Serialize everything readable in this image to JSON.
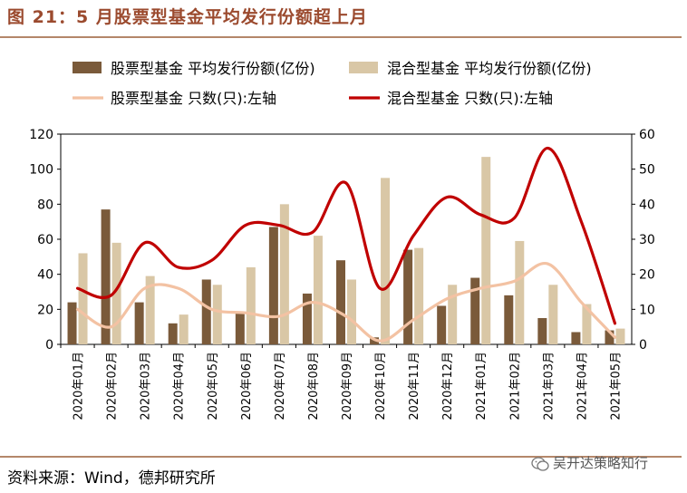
{
  "title": "图 21：5 月股票型基金平均发行份额超上月",
  "source": "资料来源：Wind，德邦研究所",
  "watermark": "吴开达策略知行",
  "colors": {
    "stock_bar": "#7a5a3a",
    "mixed_bar": "#d9c7a6",
    "stock_line": "#f3c2a3",
    "mixed_line": "#c00000",
    "accent": "#9b4a2e"
  },
  "chart_data": {
    "type": "bar",
    "categories": [
      "2020年01月",
      "2020年02月",
      "2020年03月",
      "2020年04月",
      "2020年05月",
      "2020年06月",
      "2020年07月",
      "2020年08月",
      "2020年09月",
      "2020年10月",
      "2020年11月",
      "2020年12月",
      "2021年01月",
      "2021年02月",
      "2021年03月",
      "2021年04月",
      "2021年05月"
    ],
    "series": [
      {
        "name": "股票型基金 平均发行份额(亿份)",
        "type": "bar",
        "axis": "left",
        "values": [
          24,
          77,
          24,
          12,
          37,
          18,
          67,
          29,
          48,
          4,
          54,
          22,
          38,
          28,
          15,
          7,
          8
        ]
      },
      {
        "name": "混合型基金 平均发行份额(亿份)",
        "type": "bar",
        "axis": "left",
        "values": [
          52,
          58,
          39,
          17,
          34,
          44,
          80,
          62,
          37,
          95,
          55,
          34,
          107,
          59,
          34,
          23,
          9
        ]
      },
      {
        "name": "股票型基金 只数(只):左轴",
        "type": "line",
        "axis": "right",
        "values": [
          10,
          5,
          16,
          16,
          10,
          9,
          8,
          12,
          8,
          1,
          7,
          13,
          16,
          18,
          23,
          12,
          2
        ]
      },
      {
        "name": "混合型基金 只数(只):左轴",
        "type": "line",
        "axis": "right",
        "values": [
          16,
          14,
          29,
          22,
          24,
          34,
          34,
          32,
          46,
          16,
          31,
          42,
          37,
          36,
          56,
          35,
          6
        ]
      }
    ],
    "y_left": {
      "min": 0,
      "max": 120,
      "ticks": [
        0,
        20,
        40,
        60,
        80,
        100,
        120
      ]
    },
    "y_right": {
      "min": 0,
      "max": 60,
      "ticks": [
        0,
        10,
        20,
        30,
        40,
        50,
        60
      ]
    },
    "grid": false,
    "legend_position": "top"
  }
}
